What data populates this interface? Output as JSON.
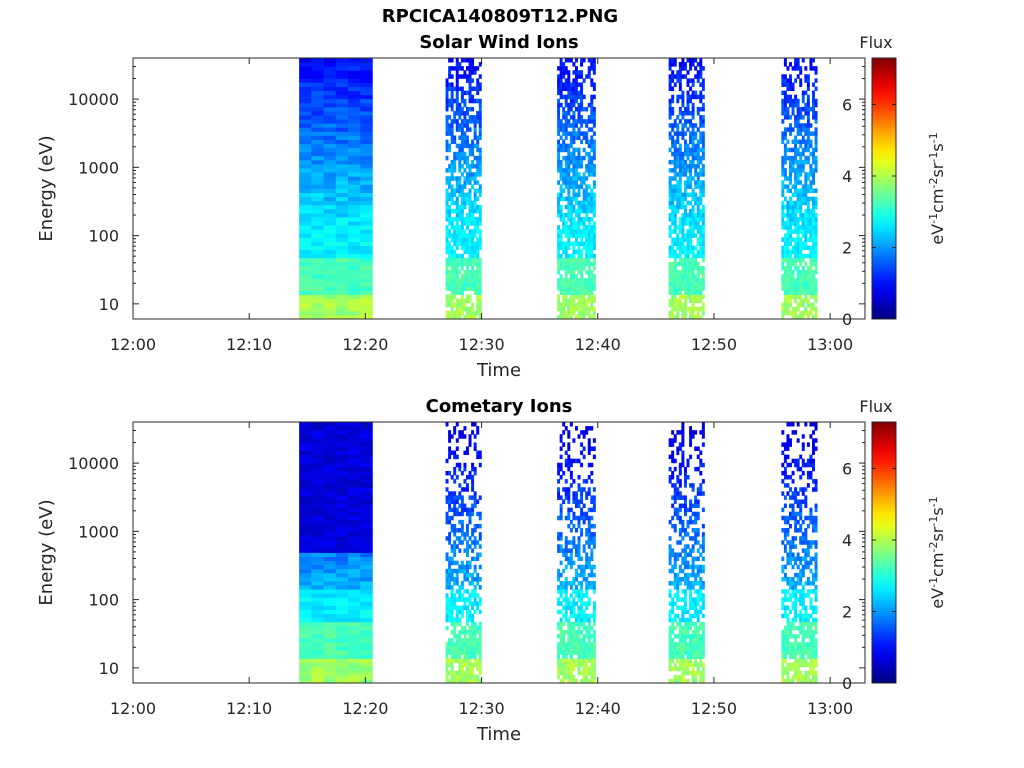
{
  "figure_title": "RPCICA140809T12.PNG",
  "chart_data": [
    {
      "type": "heatmap",
      "title": "Solar Wind Ions",
      "xlabel": "Time",
      "ylabel": "Energy (eV)",
      "x_ticks": [
        "12:00",
        "12:10",
        "12:20",
        "12:30",
        "12:40",
        "12:50",
        "13:00"
      ],
      "y_ticks": [
        "10",
        "100",
        "1000",
        "10000"
      ],
      "x_range_minutes": [
        0,
        63
      ],
      "y_range_ev": [
        6,
        40000
      ],
      "y_scale": "log",
      "colorbar": {
        "title": "Flux",
        "label": "eV-1cm-2sr-1s-1",
        "ticks": [
          "0",
          "2",
          "4",
          "6"
        ],
        "range": [
          0,
          7.3
        ],
        "colormap": "jet"
      },
      "data_intervals_minutes": [
        [
          14.3,
          20.3
        ],
        [
          26.9,
          30.0
        ],
        [
          36.5,
          39.7
        ],
        [
          46.1,
          49.2
        ],
        [
          55.8,
          58.8
        ]
      ]
    },
    {
      "type": "heatmap",
      "title": "Cometary Ions",
      "xlabel": "Time",
      "ylabel": "Energy (eV)",
      "x_ticks": [
        "12:00",
        "12:10",
        "12:20",
        "12:30",
        "12:40",
        "12:50",
        "13:00"
      ],
      "y_ticks": [
        "10",
        "100",
        "1000",
        "10000"
      ],
      "x_range_minutes": [
        0,
        63
      ],
      "y_range_ev": [
        6,
        40000
      ],
      "y_scale": "log",
      "colorbar": {
        "title": "Flux",
        "label": "eV-1cm-2sr-1s-1",
        "ticks": [
          "0",
          "2",
          "4",
          "6"
        ],
        "range": [
          0,
          7.3
        ],
        "colormap": "jet"
      },
      "data_intervals_minutes": [
        [
          14.3,
          20.3
        ],
        [
          26.9,
          30.0
        ],
        [
          36.5,
          39.7
        ],
        [
          46.1,
          49.2
        ],
        [
          55.8,
          58.8
        ]
      ]
    }
  ]
}
